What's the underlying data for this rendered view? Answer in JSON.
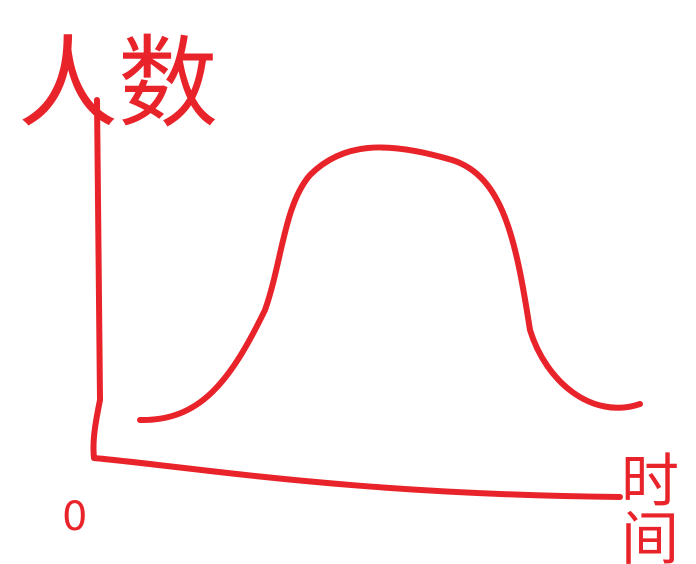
{
  "y_axis_label": "人数",
  "x_axis_label": "时间",
  "origin_label": "0"
}
